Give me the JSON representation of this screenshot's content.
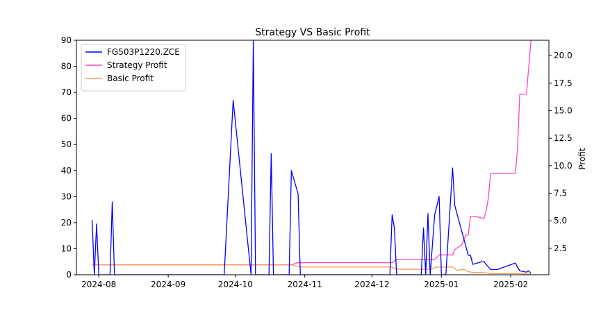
{
  "chart_data": {
    "type": "line",
    "title": "Strategy VS Basic Profit",
    "xlabel": "",
    "ylabel_left": "",
    "ylabel_right": "Profit",
    "x_ticks": [
      "2024-08",
      "2024-09",
      "2024-10",
      "2024-11",
      "2024-12",
      "2025-01",
      "2025-02"
    ],
    "x_tick_dates": [
      "2024-08-01",
      "2024-09-01",
      "2024-10-01",
      "2024-11-01",
      "2024-12-01",
      "2025-01-01",
      "2025-02-01"
    ],
    "xlim": [
      "2024-07-22",
      "2025-02-18"
    ],
    "ylim_left": [
      0,
      90
    ],
    "ylim_right": [
      0.1,
      21.4
    ],
    "yticks_left": [
      0,
      10,
      20,
      30,
      40,
      50,
      60,
      70,
      80,
      90
    ],
    "yticks_right": [
      "2.5",
      "5.0",
      "7.5",
      "10.0",
      "12.5",
      "15.0",
      "17.5",
      "20.0"
    ],
    "yticks_right_values": [
      2.5,
      5.0,
      7.5,
      10.0,
      12.5,
      15.0,
      17.5,
      20.0
    ],
    "legend_position": "top-left",
    "series": [
      {
        "name": "FG503P1220.ZCE",
        "axis": "left",
        "color": "#0000ff",
        "points": [
          [
            "2024-07-29",
            21
          ],
          [
            "2024-07-30",
            0
          ],
          [
            "2024-07-31",
            19.5
          ],
          [
            "2024-08-01",
            0
          ],
          [
            "2024-08-06",
            0
          ],
          [
            "2024-08-07",
            28
          ],
          [
            "2024-08-08",
            0
          ],
          [
            "2024-09-26",
            0
          ],
          [
            "2024-09-30",
            67
          ],
          [
            "2024-10-08",
            0
          ],
          [
            "2024-10-09",
            90
          ],
          [
            "2024-10-10",
            0
          ],
          [
            "2024-10-16",
            0
          ],
          [
            "2024-10-17",
            46.5
          ],
          [
            "2024-10-18",
            0
          ],
          [
            "2024-10-25",
            0
          ],
          [
            "2024-10-26",
            40
          ],
          [
            "2024-10-29",
            31
          ],
          [
            "2024-10-30",
            0
          ],
          [
            "2024-12-09",
            0
          ],
          [
            "2024-12-10",
            23
          ],
          [
            "2024-12-11",
            18
          ],
          [
            "2024-12-12",
            0
          ],
          [
            "2024-12-23",
            0
          ],
          [
            "2024-12-24",
            18
          ],
          [
            "2024-12-25",
            0
          ],
          [
            "2024-12-26",
            23.5
          ],
          [
            "2024-12-27",
            0
          ],
          [
            "2024-12-29",
            23
          ],
          [
            "2024-12-31",
            30
          ],
          [
            "2025-01-01",
            0
          ],
          [
            "2025-01-03",
            0
          ],
          [
            "2025-01-06",
            41
          ],
          [
            "2025-01-07",
            26.5
          ],
          [
            "2025-01-13",
            7.5
          ],
          [
            "2025-01-14",
            7.5
          ],
          [
            "2025-01-15",
            4
          ],
          [
            "2025-01-19",
            5
          ],
          [
            "2025-01-20",
            5
          ],
          [
            "2025-01-23",
            2
          ],
          [
            "2025-01-26",
            2
          ],
          [
            "2025-02-03",
            4.5
          ],
          [
            "2025-02-05",
            1.5
          ],
          [
            "2025-02-08",
            1
          ],
          [
            "2025-02-09",
            1.5
          ],
          [
            "2025-02-10",
            0.5
          ]
        ]
      },
      {
        "name": "Strategy Profit",
        "axis": "right",
        "color": "#ff44bb",
        "points": [
          [
            "2024-07-29",
            1.0
          ],
          [
            "2024-10-26",
            1.0
          ],
          [
            "2024-10-29",
            1.2
          ],
          [
            "2024-12-10",
            1.2
          ],
          [
            "2024-12-12",
            1.5
          ],
          [
            "2024-12-27",
            1.5
          ],
          [
            "2024-12-29",
            1.5
          ],
          [
            "2024-12-31",
            1.9
          ],
          [
            "2025-01-06",
            1.9
          ],
          [
            "2025-01-07",
            2.4
          ],
          [
            "2025-01-10",
            2.8
          ],
          [
            "2025-01-12",
            3.7
          ],
          [
            "2025-01-13",
            3.7
          ],
          [
            "2025-01-14",
            5.4
          ],
          [
            "2025-01-16",
            5.4
          ],
          [
            "2025-01-20",
            5.2
          ],
          [
            "2025-01-21",
            5.9
          ],
          [
            "2025-01-22",
            7.1
          ],
          [
            "2025-01-23",
            9.3
          ],
          [
            "2025-02-03",
            9.3
          ],
          [
            "2025-02-04",
            11.5
          ],
          [
            "2025-02-05",
            16.5
          ],
          [
            "2025-02-08",
            16.5
          ],
          [
            "2025-02-10",
            21.4
          ]
        ]
      },
      {
        "name": "Basic Profit",
        "axis": "right",
        "color": "#f59a4c",
        "points": [
          [
            "2024-07-29",
            1.0
          ],
          [
            "2024-10-26",
            1.0
          ],
          [
            "2024-10-30",
            0.8
          ],
          [
            "2024-12-10",
            0.8
          ],
          [
            "2024-12-12",
            0.6
          ],
          [
            "2024-12-27",
            0.6
          ],
          [
            "2024-12-30",
            0.8
          ],
          [
            "2025-01-06",
            0.8
          ],
          [
            "2025-01-08",
            0.5
          ],
          [
            "2025-01-11",
            0.6
          ],
          [
            "2025-01-13",
            0.4
          ],
          [
            "2025-01-15",
            0.3
          ],
          [
            "2025-01-20",
            0.3
          ],
          [
            "2025-01-23",
            0.2
          ],
          [
            "2025-02-05",
            0.2
          ],
          [
            "2025-02-10",
            0.15
          ]
        ]
      }
    ]
  }
}
